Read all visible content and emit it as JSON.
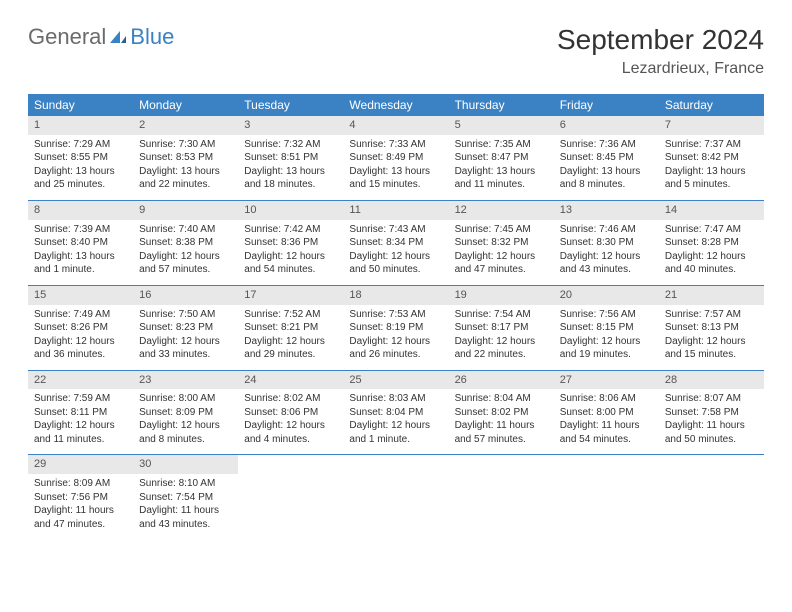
{
  "logo": {
    "general": "General",
    "blue": "Blue"
  },
  "title": "September 2024",
  "location": "Lezardrieux, France",
  "colors": {
    "header_bg": "#3b82c4",
    "header_text": "#ffffff",
    "daynum_bg": "#e8e8e8",
    "border": "#3b82c4",
    "logo_gray": "#6b6b6b",
    "logo_blue": "#3b82c4"
  },
  "weekdays": [
    "Sunday",
    "Monday",
    "Tuesday",
    "Wednesday",
    "Thursday",
    "Friday",
    "Saturday"
  ],
  "weeks": [
    [
      {
        "n": "1",
        "sunrise": "Sunrise: 7:29 AM",
        "sunset": "Sunset: 8:55 PM",
        "daylight": "Daylight: 13 hours and 25 minutes."
      },
      {
        "n": "2",
        "sunrise": "Sunrise: 7:30 AM",
        "sunset": "Sunset: 8:53 PM",
        "daylight": "Daylight: 13 hours and 22 minutes."
      },
      {
        "n": "3",
        "sunrise": "Sunrise: 7:32 AM",
        "sunset": "Sunset: 8:51 PM",
        "daylight": "Daylight: 13 hours and 18 minutes."
      },
      {
        "n": "4",
        "sunrise": "Sunrise: 7:33 AM",
        "sunset": "Sunset: 8:49 PM",
        "daylight": "Daylight: 13 hours and 15 minutes."
      },
      {
        "n": "5",
        "sunrise": "Sunrise: 7:35 AM",
        "sunset": "Sunset: 8:47 PM",
        "daylight": "Daylight: 13 hours and 11 minutes."
      },
      {
        "n": "6",
        "sunrise": "Sunrise: 7:36 AM",
        "sunset": "Sunset: 8:45 PM",
        "daylight": "Daylight: 13 hours and 8 minutes."
      },
      {
        "n": "7",
        "sunrise": "Sunrise: 7:37 AM",
        "sunset": "Sunset: 8:42 PM",
        "daylight": "Daylight: 13 hours and 5 minutes."
      }
    ],
    [
      {
        "n": "8",
        "sunrise": "Sunrise: 7:39 AM",
        "sunset": "Sunset: 8:40 PM",
        "daylight": "Daylight: 13 hours and 1 minute."
      },
      {
        "n": "9",
        "sunrise": "Sunrise: 7:40 AM",
        "sunset": "Sunset: 8:38 PM",
        "daylight": "Daylight: 12 hours and 57 minutes."
      },
      {
        "n": "10",
        "sunrise": "Sunrise: 7:42 AM",
        "sunset": "Sunset: 8:36 PM",
        "daylight": "Daylight: 12 hours and 54 minutes."
      },
      {
        "n": "11",
        "sunrise": "Sunrise: 7:43 AM",
        "sunset": "Sunset: 8:34 PM",
        "daylight": "Daylight: 12 hours and 50 minutes."
      },
      {
        "n": "12",
        "sunrise": "Sunrise: 7:45 AM",
        "sunset": "Sunset: 8:32 PM",
        "daylight": "Daylight: 12 hours and 47 minutes."
      },
      {
        "n": "13",
        "sunrise": "Sunrise: 7:46 AM",
        "sunset": "Sunset: 8:30 PM",
        "daylight": "Daylight: 12 hours and 43 minutes."
      },
      {
        "n": "14",
        "sunrise": "Sunrise: 7:47 AM",
        "sunset": "Sunset: 8:28 PM",
        "daylight": "Daylight: 12 hours and 40 minutes."
      }
    ],
    [
      {
        "n": "15",
        "sunrise": "Sunrise: 7:49 AM",
        "sunset": "Sunset: 8:26 PM",
        "daylight": "Daylight: 12 hours and 36 minutes."
      },
      {
        "n": "16",
        "sunrise": "Sunrise: 7:50 AM",
        "sunset": "Sunset: 8:23 PM",
        "daylight": "Daylight: 12 hours and 33 minutes."
      },
      {
        "n": "17",
        "sunrise": "Sunrise: 7:52 AM",
        "sunset": "Sunset: 8:21 PM",
        "daylight": "Daylight: 12 hours and 29 minutes."
      },
      {
        "n": "18",
        "sunrise": "Sunrise: 7:53 AM",
        "sunset": "Sunset: 8:19 PM",
        "daylight": "Daylight: 12 hours and 26 minutes."
      },
      {
        "n": "19",
        "sunrise": "Sunrise: 7:54 AM",
        "sunset": "Sunset: 8:17 PM",
        "daylight": "Daylight: 12 hours and 22 minutes."
      },
      {
        "n": "20",
        "sunrise": "Sunrise: 7:56 AM",
        "sunset": "Sunset: 8:15 PM",
        "daylight": "Daylight: 12 hours and 19 minutes."
      },
      {
        "n": "21",
        "sunrise": "Sunrise: 7:57 AM",
        "sunset": "Sunset: 8:13 PM",
        "daylight": "Daylight: 12 hours and 15 minutes."
      }
    ],
    [
      {
        "n": "22",
        "sunrise": "Sunrise: 7:59 AM",
        "sunset": "Sunset: 8:11 PM",
        "daylight": "Daylight: 12 hours and 11 minutes."
      },
      {
        "n": "23",
        "sunrise": "Sunrise: 8:00 AM",
        "sunset": "Sunset: 8:09 PM",
        "daylight": "Daylight: 12 hours and 8 minutes."
      },
      {
        "n": "24",
        "sunrise": "Sunrise: 8:02 AM",
        "sunset": "Sunset: 8:06 PM",
        "daylight": "Daylight: 12 hours and 4 minutes."
      },
      {
        "n": "25",
        "sunrise": "Sunrise: 8:03 AM",
        "sunset": "Sunset: 8:04 PM",
        "daylight": "Daylight: 12 hours and 1 minute."
      },
      {
        "n": "26",
        "sunrise": "Sunrise: 8:04 AM",
        "sunset": "Sunset: 8:02 PM",
        "daylight": "Daylight: 11 hours and 57 minutes."
      },
      {
        "n": "27",
        "sunrise": "Sunrise: 8:06 AM",
        "sunset": "Sunset: 8:00 PM",
        "daylight": "Daylight: 11 hours and 54 minutes."
      },
      {
        "n": "28",
        "sunrise": "Sunrise: 8:07 AM",
        "sunset": "Sunset: 7:58 PM",
        "daylight": "Daylight: 11 hours and 50 minutes."
      }
    ],
    [
      {
        "n": "29",
        "sunrise": "Sunrise: 8:09 AM",
        "sunset": "Sunset: 7:56 PM",
        "daylight": "Daylight: 11 hours and 47 minutes."
      },
      {
        "n": "30",
        "sunrise": "Sunrise: 8:10 AM",
        "sunset": "Sunset: 7:54 PM",
        "daylight": "Daylight: 11 hours and 43 minutes."
      },
      {
        "empty": true
      },
      {
        "empty": true
      },
      {
        "empty": true
      },
      {
        "empty": true
      },
      {
        "empty": true
      }
    ]
  ]
}
